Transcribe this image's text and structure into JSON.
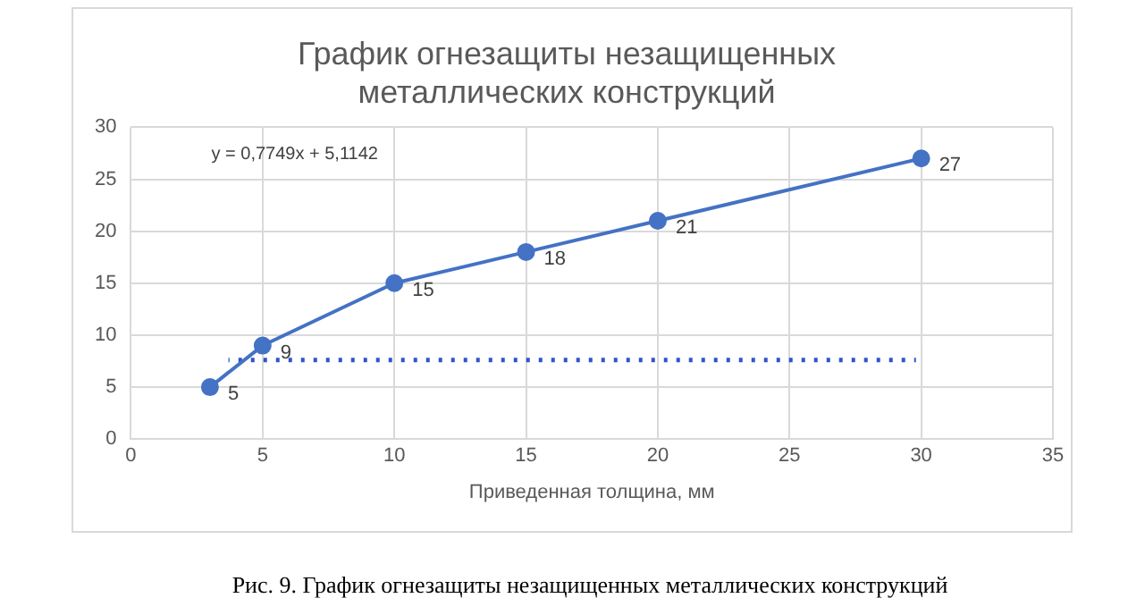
{
  "chart_data": {
    "type": "line",
    "title": "График огнезащиты незащищенных металлических конструкций",
    "xlabel": "Приведенная толщина, мм",
    "series": [
      {
        "x": [
          3,
          5,
          10,
          15,
          20,
          30
        ],
        "values": [
          5,
          9,
          15,
          18,
          21,
          27
        ],
        "color": "#4472c4",
        "marker": "circle",
        "line_style": "solid",
        "value_labels": [
          "5",
          "9",
          "15",
          "18",
          "21",
          "27"
        ]
      },
      {
        "x": [
          3.7,
          29.8
        ],
        "values": [
          7.6,
          7.6
        ],
        "color": "#2f55c8",
        "marker": "none",
        "line_style": "dotted"
      }
    ],
    "xlim": [
      0,
      35
    ],
    "xticks": [
      0,
      5,
      10,
      15,
      20,
      25,
      30,
      35
    ],
    "ylim": [
      0,
      30
    ],
    "yticks": [
      0,
      5,
      10,
      15,
      20,
      25,
      30
    ],
    "grid": true,
    "legend": false,
    "annotations": [
      "y = 0,7749x + 5,1142",
      "Рис. 9. График огнезащиты незащищенных металлических конструкций"
    ]
  }
}
